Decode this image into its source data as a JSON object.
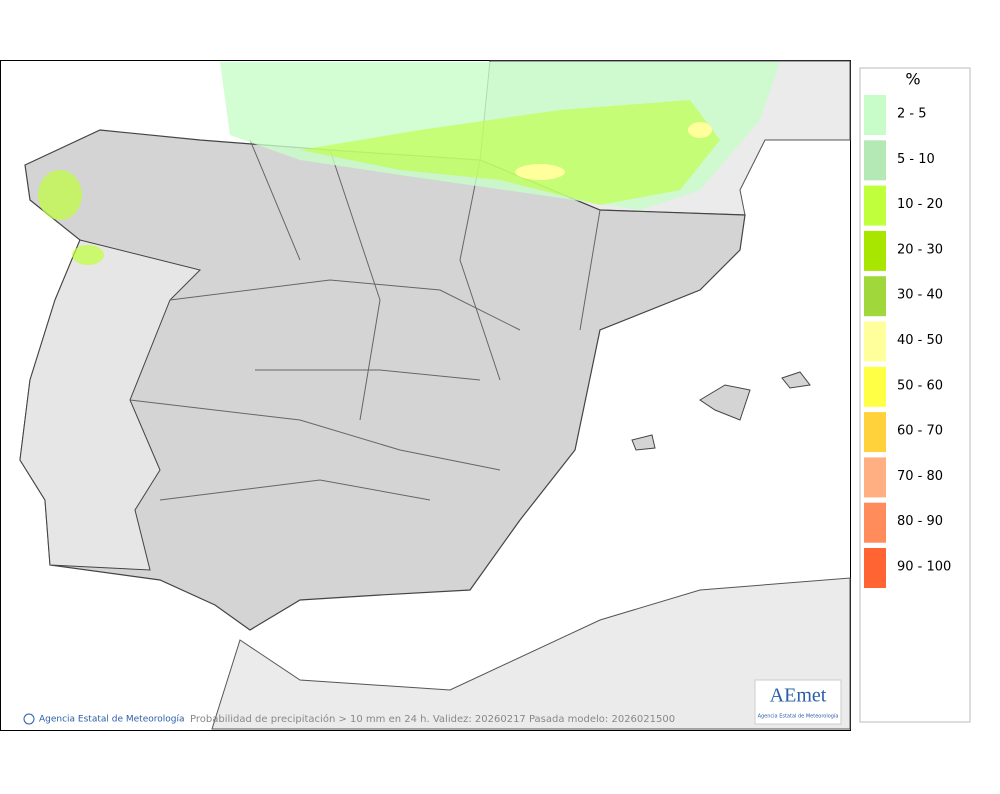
{
  "map": {
    "credit": "Agencia Estatal de Meteorología",
    "caption": "Probabilidad de precipitación > 10 mm en 24 h. Validez: 20260217 Pasada modelo: 2026021500",
    "logo": {
      "text": "AEmet",
      "subtitle": "Agencia Estatal de Meteorología"
    }
  },
  "legend": {
    "title": "%",
    "items": [
      {
        "label": "2 - 5",
        "color": "#c8fcc8"
      },
      {
        "label": "5 - 10",
        "color": "#b4e8b4"
      },
      {
        "label": "10 - 20",
        "color": "#bfff3c"
      },
      {
        "label": "20 - 30",
        "color": "#a8e600"
      },
      {
        "label": "30 - 40",
        "color": "#a0d83c"
      },
      {
        "label": "40 - 50",
        "color": "#ffff9c"
      },
      {
        "label": "50 - 60",
        "color": "#ffff46"
      },
      {
        "label": "60 - 70",
        "color": "#ffd23c"
      },
      {
        "label": "70 - 80",
        "color": "#ffaf82"
      },
      {
        "label": "80 - 90",
        "color": "#ff8c5a"
      },
      {
        "label": "90 - 100",
        "color": "#ff6432"
      }
    ]
  }
}
